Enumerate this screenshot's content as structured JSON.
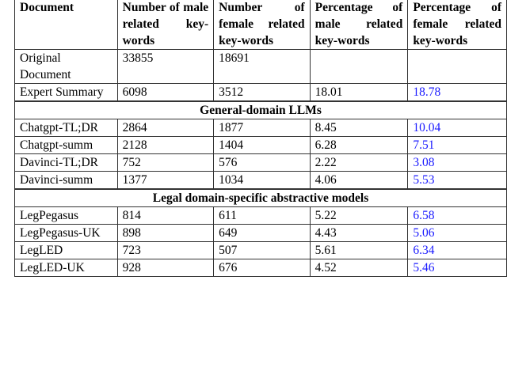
{
  "headers": [
    "Document",
    "Number of male related key-words",
    "Number of female related key-words",
    "Percentage of male related key-words",
    "Percentage of female related key-words"
  ],
  "rows_top": [
    {
      "doc": "Original Document",
      "male": "33855",
      "female": "18691",
      "pmale": "",
      "pfemale": ""
    },
    {
      "doc": "Expert Summary",
      "male": "6098",
      "female": "3512",
      "pmale": "18.01",
      "pfemale": "18.78"
    }
  ],
  "section1": "General-domain LLMs",
  "rows_general": [
    {
      "doc": "Chatgpt-TL;DR",
      "male": "2864",
      "female": "1877",
      "pmale": "8.45",
      "pfemale": "10.04"
    },
    {
      "doc": "Chatgpt-summ",
      "male": "2128",
      "female": "1404",
      "pmale": "6.28",
      "pfemale": "7.51"
    },
    {
      "doc": "Davinci-TL;DR",
      "male": "752",
      "female": "576",
      "pmale": "2.22",
      "pfemale": "3.08"
    },
    {
      "doc": "Davinci-summ",
      "male": "1377",
      "female": "1034",
      "pmale": "4.06",
      "pfemale": "5.53"
    }
  ],
  "section2": "Legal domain-specific abstractive models",
  "rows_legal": [
    {
      "doc": "LegPegasus",
      "male": "814",
      "female": "611",
      "pmale": "5.22",
      "pfemale": "6.58"
    },
    {
      "doc": "LegPegasus-UK",
      "male": "898",
      "female": "649",
      "pmale": "4.43",
      "pfemale": "5.06"
    },
    {
      "doc": "LegLED",
      "male": "723",
      "female": "507",
      "pmale": "5.61",
      "pfemale": "6.34"
    },
    {
      "doc": "LegLED-UK",
      "male": "928",
      "female": "676",
      "pmale": "4.52",
      "pfemale": "5.46"
    }
  ],
  "highlight_color": "#1a1aff"
}
